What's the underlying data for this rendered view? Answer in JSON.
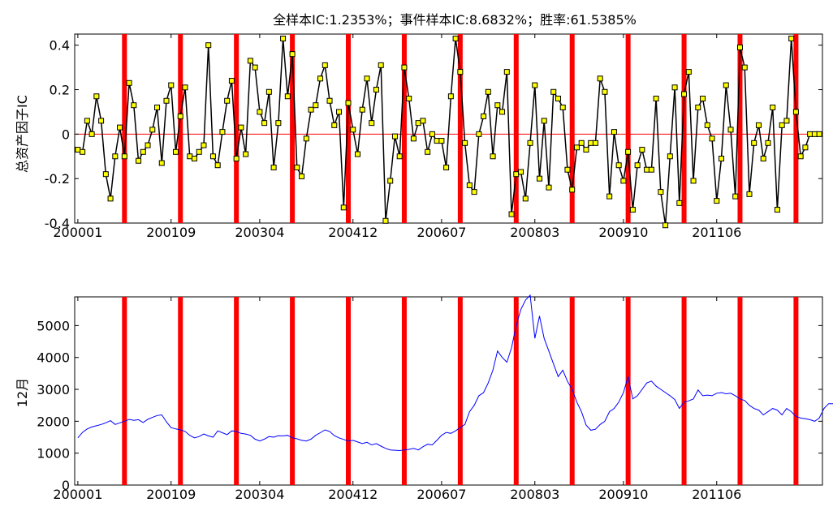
{
  "colors": {
    "event_line": "#ff0000",
    "zero_line": "#ff0000",
    "ic_line": "#000000",
    "ic_marker_fill": "#ffff00",
    "price_line": "#0000ff"
  },
  "chart_data": [
    {
      "type": "line",
      "title": "全样本IC:1.2353%；事件样本IC:8.6832%；胜率:61.5385%",
      "ylabel": "总资产因子IC",
      "xlabel": "",
      "ylim": [
        -0.4,
        0.45
      ],
      "yticks": [
        "-0.4",
        "-0.2",
        "0",
        "0.2",
        "0.4"
      ],
      "xtick_labels": [
        "200001",
        "200109",
        "200304",
        "200412",
        "200607",
        "200803",
        "200910",
        "201106"
      ],
      "xtick_index": [
        0,
        20,
        39,
        59,
        78,
        98,
        117,
        137
      ],
      "n_points": 160,
      "event_index": [
        10,
        22,
        34,
        46,
        58,
        70,
        82,
        94,
        106,
        118,
        130,
        142,
        154
      ],
      "zero_line": true,
      "series": [
        {
          "marker": "square",
          "values": [
            -0.07,
            -0.08,
            0.06,
            0.0,
            0.17,
            0.06,
            -0.18,
            -0.29,
            -0.1,
            0.03,
            -0.1,
            0.23,
            0.13,
            -0.12,
            -0.08,
            -0.05,
            0.02,
            0.12,
            -0.13,
            0.15,
            0.22,
            -0.08,
            0.08,
            0.21,
            -0.1,
            -0.11,
            -0.08,
            -0.05,
            0.4,
            -0.1,
            -0.14,
            0.01,
            0.15,
            0.24,
            -0.11,
            0.03,
            -0.09,
            0.33,
            0.3,
            0.1,
            0.05,
            0.19,
            -0.15,
            0.05,
            0.43,
            0.17,
            0.36,
            -0.15,
            -0.19,
            -0.02,
            0.11,
            0.13,
            0.25,
            0.31,
            0.15,
            0.04,
            0.1,
            -0.33,
            0.14,
            0.02,
            -0.09,
            0.11,
            0.25,
            0.05,
            0.2,
            0.31,
            -0.39,
            -0.21,
            -0.01,
            -0.1,
            0.3,
            0.16,
            -0.02,
            0.05,
            0.06,
            -0.08,
            0.0,
            -0.03,
            -0.03,
            -0.15,
            0.17,
            0.43,
            0.28,
            -0.04,
            -0.23,
            -0.26,
            0.0,
            0.08,
            0.19,
            -0.1,
            0.13,
            0.1,
            0.28,
            -0.36,
            -0.18,
            -0.17,
            -0.29,
            -0.04,
            0.22,
            -0.2,
            0.06,
            -0.24,
            0.19,
            0.16,
            0.12,
            -0.16,
            -0.25,
            -0.06,
            -0.04,
            -0.07,
            -0.04,
            -0.04,
            0.25,
            0.19,
            -0.28,
            0.01,
            -0.14,
            -0.21,
            -0.08,
            -0.34,
            -0.14,
            -0.07,
            -0.16,
            -0.16,
            0.16,
            -0.26,
            -0.41,
            -0.1,
            0.21,
            -0.31,
            0.18,
            0.28,
            -0.21,
            0.12,
            0.16,
            0.04,
            -0.02,
            -0.3,
            -0.11,
            0.22,
            0.02,
            -0.28,
            0.39,
            0.3,
            -0.27,
            -0.04,
            0.04,
            -0.11,
            -0.04,
            0.12,
            -0.34,
            0.04,
            0.06,
            0.43,
            0.1,
            -0.1,
            -0.06,
            0.0,
            0.0,
            0.0
          ]
        }
      ]
    },
    {
      "type": "line",
      "title": "",
      "ylabel": "12月",
      "xlabel": "",
      "ylim": [
        0,
        5900
      ],
      "yticks": [
        "0",
        "1000",
        "2000",
        "3000",
        "4000",
        "5000"
      ],
      "xtick_labels": [
        "200001",
        "200109",
        "200304",
        "200412",
        "200607",
        "200803",
        "200910",
        "201106"
      ],
      "xtick_index": [
        0,
        20,
        39,
        59,
        78,
        98,
        117,
        137
      ],
      "n_points": 160,
      "event_index": [
        10,
        22,
        34,
        46,
        58,
        70,
        82,
        94,
        106,
        118,
        130,
        142,
        154
      ],
      "series": [
        {
          "values": [
            1480,
            1650,
            1760,
            1820,
            1860,
            1900,
            1950,
            2020,
            1900,
            1950,
            2000,
            2060,
            2030,
            2050,
            1960,
            2060,
            2120,
            2180,
            2200,
            1980,
            1800,
            1760,
            1730,
            1680,
            1560,
            1480,
            1520,
            1600,
            1540,
            1500,
            1700,
            1640,
            1580,
            1700,
            1680,
            1620,
            1600,
            1560,
            1440,
            1380,
            1440,
            1520,
            1500,
            1550,
            1540,
            1560,
            1480,
            1450,
            1400,
            1380,
            1440,
            1560,
            1640,
            1730,
            1680,
            1550,
            1480,
            1430,
            1380,
            1400,
            1350,
            1300,
            1340,
            1260,
            1300,
            1220,
            1150,
            1100,
            1090,
            1080,
            1100,
            1120,
            1150,
            1100,
            1200,
            1280,
            1260,
            1400,
            1560,
            1650,
            1620,
            1700,
            1800,
            1900,
            2300,
            2500,
            2800,
            2900,
            3200,
            3600,
            4200,
            4000,
            3850,
            4300,
            5000,
            5500,
            5800,
            5950,
            4600,
            5300,
            4600,
            4200,
            3800,
            3400,
            3600,
            3250,
            3000,
            2600,
            2300,
            1880,
            1720,
            1750,
            1900,
            2000,
            2300,
            2400,
            2600,
            2900,
            3400,
            2700,
            2800,
            3000,
            3200,
            3260,
            3100,
            3000,
            2900,
            2800,
            2680,
            2400,
            2600,
            2640,
            2700,
            2980,
            2800,
            2820,
            2800,
            2880,
            2900,
            2860,
            2880,
            2800,
            2700,
            2650,
            2500,
            2400,
            2350,
            2200,
            2300,
            2400,
            2350,
            2200,
            2400,
            2300,
            2150,
            2100,
            2080,
            2050,
            2000,
            2100,
            2400,
            2550,
            2550,
            2550
          ]
        }
      ]
    }
  ]
}
